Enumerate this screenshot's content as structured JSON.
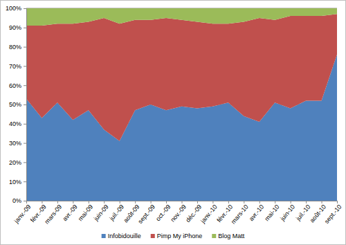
{
  "chart_data": {
    "type": "area",
    "stacked": true,
    "grid": true,
    "legend": "bottom",
    "categories": [
      "janv.-09",
      "févr.-09",
      "mars-09",
      "avr.-09",
      "mai-09",
      "juin-09",
      "juil.-09",
      "août-09",
      "sept.-09",
      "oct.-09",
      "nov.-09",
      "déc.-09",
      "janv.-10",
      "févr.-10",
      "mars-10",
      "avr.-10",
      "mai-10",
      "juin-10",
      "juil.-10",
      "août-10",
      "sept.-10"
    ],
    "series": [
      {
        "name": "Infobidouille",
        "color": "#4f81bd",
        "values": [
          53,
          43,
          51,
          42,
          47,
          37,
          31,
          47,
          50,
          47,
          49,
          48,
          49,
          51,
          44,
          41,
          51,
          48,
          52,
          52,
          76
        ]
      },
      {
        "name": "Pimp My iPhone",
        "color": "#c0504d",
        "values": [
          38,
          48,
          41,
          50,
          46,
          58,
          61,
          47,
          44,
          48,
          45,
          45,
          43,
          41,
          49,
          54,
          43,
          48,
          44,
          44,
          21
        ]
      },
      {
        "name": "Blog Matt",
        "color": "#9bbb59",
        "values": [
          9,
          9,
          8,
          8,
          7,
          5,
          8,
          6,
          6,
          5,
          6,
          7,
          8,
          8,
          7,
          5,
          6,
          4,
          4,
          4,
          3
        ]
      }
    ],
    "ylim": [
      0,
      100
    ],
    "yticks": [
      {
        "value": 0,
        "label": "0%"
      },
      {
        "value": 10,
        "label": "10%"
      },
      {
        "value": 20,
        "label": "20%"
      },
      {
        "value": 30,
        "label": "30%"
      },
      {
        "value": 40,
        "label": "40%"
      },
      {
        "value": 50,
        "label": "50%"
      },
      {
        "value": 60,
        "label": "60%"
      },
      {
        "value": 70,
        "label": "70%"
      },
      {
        "value": 80,
        "label": "80%"
      },
      {
        "value": 90,
        "label": "90%"
      },
      {
        "value": 100,
        "label": "100%"
      }
    ]
  }
}
